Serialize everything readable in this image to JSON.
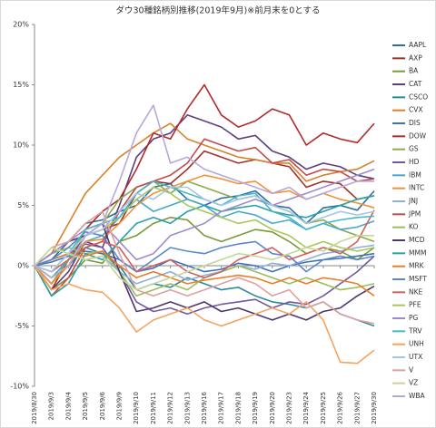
{
  "chart_data": {
    "type": "line",
    "title": "ダウ30種銘柄別推移(2019年9月)※前月末を0とする",
    "categories": [
      "2019/8/30",
      "2019/9/3",
      "2019/9/4",
      "2019/9/5",
      "2019/9/6",
      "2019/9/9",
      "2019/9/10",
      "2019/9/11",
      "2019/9/12",
      "2019/9/13",
      "2019/9/16",
      "2019/9/17",
      "2019/9/18",
      "2019/9/19",
      "2019/9/20",
      "2019/9/23",
      "2019/9/24",
      "2019/9/25",
      "2019/9/26",
      "2019/9/27",
      "2019/9/30"
    ],
    "ylim": [
      -10,
      20
    ],
    "yticks": [
      {
        "value": -10,
        "label": "-10%"
      },
      {
        "value": -5,
        "label": "-5%"
      },
      {
        "value": 0,
        "label": "0%"
      },
      {
        "value": 5,
        "label": "5%"
      },
      {
        "value": 10,
        "label": "10%"
      },
      {
        "value": 15,
        "label": "15%"
      },
      {
        "value": 20,
        "label": "20%"
      }
    ],
    "legend": "right",
    "series": [
      {
        "name": "AAPL",
        "color": "#2f6ea3",
        "values": [
          0,
          0.5,
          2.0,
          3.5,
          3.8,
          4.5,
          5.0,
          6.5,
          6.8,
          5.5,
          5.0,
          5.6,
          5.8,
          6.2,
          5.0,
          4.8,
          3.5,
          4.8,
          5.0,
          4.6,
          6.2
        ]
      },
      {
        "name": "AXP",
        "color": "#a0322e",
        "values": [
          0,
          -1.5,
          0.5,
          2.5,
          3.0,
          3.5,
          6.0,
          7.0,
          6.8,
          8.0,
          9.5,
          9.0,
          8.5,
          8.8,
          8.5,
          8.2,
          6.5,
          7.0,
          6.8,
          5.5,
          5.8
        ]
      },
      {
        "name": "BA",
        "color": "#7a9a3a",
        "values": [
          0,
          -2.0,
          -1.0,
          0.5,
          0.2,
          2.0,
          2.5,
          3.5,
          4.0,
          3.8,
          2.5,
          2.0,
          2.5,
          3.0,
          2.8,
          2.0,
          1.0,
          1.5,
          1.2,
          0.5,
          1.5
        ]
      },
      {
        "name": "CAT",
        "color": "#5b3f7f",
        "values": [
          0,
          -2.0,
          -0.5,
          2.0,
          1.5,
          5.0,
          9.0,
          10.5,
          11.0,
          12.5,
          12.0,
          11.5,
          10.5,
          10.8,
          9.5,
          9.0,
          8.0,
          8.5,
          8.2,
          7.5,
          7.2
        ]
      },
      {
        "name": "CSCO",
        "color": "#2b8aa0",
        "values": [
          0,
          -1.0,
          0.0,
          1.5,
          1.0,
          0.0,
          -2.0,
          -1.5,
          -1.8,
          -1.0,
          -1.5,
          -2.0,
          -1.8,
          -2.5,
          -3.0,
          -3.2,
          -3.5,
          -3.0,
          -4.0,
          -4.5,
          -5.0
        ]
      },
      {
        "name": "CVX",
        "color": "#d9822b",
        "values": [
          0,
          1.0,
          3.5,
          6.0,
          7.5,
          9.0,
          10.0,
          11.0,
          11.8,
          10.5,
          10.0,
          9.5,
          9.0,
          8.8,
          8.5,
          8.5,
          7.0,
          7.5,
          7.8,
          8.0,
          8.7
        ]
      },
      {
        "name": "DIS",
        "color": "#3d72b8",
        "values": [
          0,
          0.3,
          0.8,
          1.2,
          1.0,
          0.5,
          -0.5,
          -0.2,
          0.5,
          0.0,
          -0.5,
          -0.3,
          0.2,
          0.0,
          -0.5,
          0.0,
          0.3,
          0.5,
          0.6,
          0.8,
          1.0
        ]
      },
      {
        "name": "DOW",
        "color": "#b22a2a",
        "values": [
          0,
          -2.0,
          0.5,
          3.0,
          4.5,
          5.5,
          8.0,
          11.0,
          10.5,
          13.0,
          15.0,
          12.5,
          11.5,
          12.0,
          13.0,
          12.5,
          10.0,
          11.0,
          10.5,
          10.2,
          11.8
        ]
      },
      {
        "name": "GS",
        "color": "#8aac4a",
        "values": [
          0,
          -1.5,
          0.5,
          3.0,
          3.5,
          5.5,
          6.5,
          7.0,
          6.0,
          7.0,
          6.5,
          6.0,
          5.5,
          5.8,
          5.0,
          4.5,
          3.5,
          3.8,
          3.0,
          2.5,
          2.0
        ]
      },
      {
        "name": "HD",
        "color": "#7558a0",
        "values": [
          0,
          0.5,
          1.0,
          1.8,
          1.5,
          -0.5,
          -3.0,
          -3.8,
          -3.5,
          -4.0,
          -3.5,
          -3.2,
          -3.0,
          -2.8,
          -3.5,
          -3.0,
          -3.2,
          -2.5,
          -1.5,
          -0.5,
          0.8
        ]
      },
      {
        "name": "IBM",
        "color": "#4aa8c8",
        "values": [
          0,
          -1.0,
          0.5,
          2.0,
          2.5,
          4.0,
          5.5,
          4.5,
          5.0,
          5.5,
          5.0,
          4.0,
          4.5,
          4.2,
          3.5,
          3.8,
          3.0,
          3.5,
          3.0,
          3.2,
          3.7
        ]
      },
      {
        "name": "INTC",
        "color": "#f0923a",
        "values": [
          0,
          -1.5,
          0.0,
          2.0,
          2.2,
          3.5,
          5.0,
          6.0,
          6.5,
          7.0,
          7.5,
          7.2,
          6.8,
          7.0,
          6.0,
          6.2,
          5.5,
          6.0,
          5.5,
          5.2,
          4.8
        ]
      },
      {
        "name": "JNJ",
        "color": "#8fb0d8",
        "values": [
          0,
          0.5,
          1.0,
          0.5,
          0.8,
          -0.5,
          -1.5,
          -1.0,
          -0.5,
          -1.2,
          -0.8,
          -0.5,
          0.0,
          -0.3,
          0.2,
          0.0,
          0.5,
          1.0,
          1.2,
          1.5,
          1.7
        ]
      },
      {
        "name": "JPM",
        "color": "#c24a4a",
        "values": [
          0,
          -2.5,
          -1.0,
          1.5,
          2.0,
          4.5,
          6.5,
          7.0,
          7.5,
          8.5,
          10.5,
          10.0,
          9.5,
          9.8,
          8.5,
          8.8,
          7.5,
          8.0,
          7.8,
          7.0,
          7.2
        ]
      },
      {
        "name": "KO",
        "color": "#9cbd5c",
        "values": [
          0,
          1.0,
          1.5,
          1.0,
          1.2,
          -0.5,
          -2.5,
          -2.0,
          -1.5,
          -2.0,
          -1.0,
          -0.5,
          0.0,
          -0.5,
          -1.0,
          -1.5,
          -1.0,
          -1.5,
          -2.0,
          -1.8,
          -1.5
        ]
      },
      {
        "name": "MCD",
        "color": "#4e3670",
        "values": [
          0,
          1.0,
          2.0,
          2.5,
          3.5,
          -0.5,
          -3.8,
          -3.5,
          -3.0,
          -3.5,
          -3.0,
          -3.8,
          -3.5,
          -4.0,
          -4.5,
          -4.0,
          -4.5,
          -3.8,
          -3.5,
          -2.5,
          -1.7
        ]
      },
      {
        "name": "MMM",
        "color": "#2aa0a8",
        "values": [
          0,
          -2.5,
          -1.5,
          1.0,
          0.5,
          2.0,
          3.5,
          4.0,
          3.5,
          4.5,
          5.0,
          4.5,
          4.8,
          5.0,
          4.5,
          4.2,
          4.0,
          4.5,
          5.0,
          5.5,
          5.8
        ]
      },
      {
        "name": "MRK",
        "color": "#e87e2a",
        "values": [
          0,
          0.5,
          1.0,
          0.8,
          1.2,
          0.0,
          -1.0,
          -0.5,
          -1.0,
          -1.5,
          -1.2,
          -1.0,
          -0.8,
          -1.0,
          -1.5,
          -1.0,
          -1.5,
          -1.0,
          -1.2,
          -1.5,
          -2.5
        ]
      },
      {
        "name": "MSFT",
        "color": "#5a88c8",
        "values": [
          0,
          0.5,
          1.5,
          2.8,
          2.5,
          0.5,
          -0.5,
          0.5,
          1.5,
          1.2,
          1.0,
          1.5,
          1.8,
          2.0,
          1.0,
          0.8,
          -0.5,
          0.5,
          0.8,
          0.5,
          0.8
        ]
      },
      {
        "name": "NKE",
        "color": "#d0605a",
        "values": [
          0,
          -0.5,
          0.5,
          1.5,
          2.0,
          1.5,
          -0.5,
          0.0,
          0.5,
          -0.5,
          -1.0,
          -0.5,
          0.5,
          1.0,
          1.5,
          0.5,
          1.0,
          1.5,
          1.0,
          2.0,
          4.6
        ]
      },
      {
        "name": "PFE",
        "color": "#a8c858",
        "values": [
          0,
          -1.0,
          0.0,
          2.5,
          3.0,
          4.0,
          5.5,
          6.5,
          6.0,
          5.0,
          4.5,
          4.0,
          3.5,
          3.8,
          3.0,
          2.5,
          1.5,
          2.0,
          1.5,
          1.2,
          1.5
        ]
      },
      {
        "name": "PG",
        "color": "#a08cc8",
        "values": [
          0,
          1.0,
          2.0,
          3.0,
          3.5,
          2.0,
          0.5,
          1.0,
          2.5,
          3.0,
          3.5,
          4.5,
          5.0,
          5.5,
          5.0,
          5.5,
          6.0,
          6.5,
          7.0,
          7.5,
          8.0
        ]
      },
      {
        "name": "TRV",
        "color": "#48b8c8",
        "values": [
          0,
          -0.5,
          1.0,
          3.0,
          3.5,
          4.0,
          6.0,
          7.0,
          6.5,
          6.0,
          5.5,
          5.0,
          5.8,
          6.0,
          4.5,
          4.0,
          3.0,
          3.5,
          3.8,
          4.0,
          4.1
        ]
      },
      {
        "name": "UNH",
        "color": "#f4a460",
        "values": [
          0,
          -2.0,
          -1.5,
          -2.0,
          -2.2,
          -3.5,
          -5.5,
          -4.5,
          -4.0,
          -3.5,
          -4.5,
          -5.0,
          -4.5,
          -4.0,
          -3.5,
          -4.0,
          -3.0,
          -4.5,
          -8.0,
          -8.1,
          -7.0
        ]
      },
      {
        "name": "UTX",
        "color": "#a8c4e4",
        "values": [
          0,
          -0.5,
          1.0,
          2.5,
          3.0,
          4.5,
          6.0,
          5.5,
          6.5,
          6.5,
          5.5,
          5.0,
          5.5,
          5.8,
          5.0,
          4.5,
          3.5,
          4.0,
          4.5,
          4.2,
          4.5
        ]
      },
      {
        "name": "V",
        "color": "#e0a0a0",
        "values": [
          0,
          1.5,
          2.0,
          3.5,
          4.5,
          1.0,
          -2.0,
          -2.5,
          -2.0,
          -2.5,
          -2.0,
          -1.5,
          -1.0,
          -1.5,
          -2.5,
          -2.0,
          -3.5,
          -3.0,
          -4.0,
          -4.5,
          -4.8
        ]
      },
      {
        "name": "VZ",
        "color": "#c4d898",
        "values": [
          0,
          1.5,
          1.0,
          0.5,
          0.8,
          -1.0,
          -2.0,
          -1.5,
          -1.0,
          -0.5,
          0.0,
          0.5,
          1.0,
          0.8,
          0.5,
          1.0,
          1.5,
          1.2,
          2.0,
          2.5,
          2.5
        ]
      },
      {
        "name": "WBA",
        "color": "#b8a8d8",
        "values": [
          0,
          -1.0,
          0.0,
          2.5,
          3.5,
          7.0,
          11.0,
          13.3,
          8.5,
          9.0,
          8.0,
          7.5,
          7.0,
          6.5,
          6.0,
          6.5,
          5.5,
          6.0,
          6.5,
          7.0,
          7.0
        ]
      }
    ]
  }
}
